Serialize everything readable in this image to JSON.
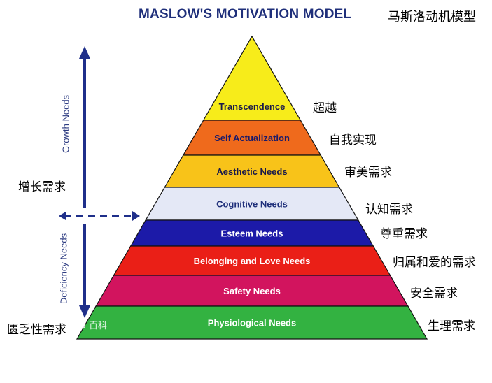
{
  "title": "MASLOW'S MOTIVATION MODEL",
  "title_cn": "马斯洛动机模型",
  "growth_label": "Growth Needs",
  "deficiency_label": "Deficiency Needs",
  "growth_label_cn": "增长需求",
  "deficiency_label_cn": "匮乏性需求",
  "watermark": "百科",
  "levels": [
    {
      "label": "Transcendence",
      "label_cn": "超越",
      "color": "#f7ec1a",
      "text_color": "#1a1a4a"
    },
    {
      "label": "Self Actualization",
      "label_cn": "自我实现",
      "color": "#ef6a1c",
      "text_color": "#1a1a6a"
    },
    {
      "label": "Aesthetic Needs",
      "label_cn": "审美需求",
      "color": "#f8c319",
      "text_color": "#1a1a4a"
    },
    {
      "label": "Cognitive Needs",
      "label_cn": "认知需求",
      "color": "#e4e8f6",
      "text_color": "#1f2f7a"
    },
    {
      "label": "Esteem Needs",
      "label_cn": "尊重需求",
      "color": "#1c1aa8",
      "text_color": "#ffffff"
    },
    {
      "label": "Belonging and Love Needs",
      "label_cn": "归属和爱的需求",
      "color": "#ea1f17",
      "text_color": "#ffffff"
    },
    {
      "label": "Safety Needs",
      "label_cn": "安全需求",
      "color": "#d2145e",
      "text_color": "#ffffff"
    },
    {
      "label": "Physiological Needs",
      "label_cn": "生理需求",
      "color": "#33b241",
      "text_color": "#ffffff"
    }
  ],
  "colors": {
    "arrow": "#1f2f8a",
    "title": "#1f2f7a"
  }
}
